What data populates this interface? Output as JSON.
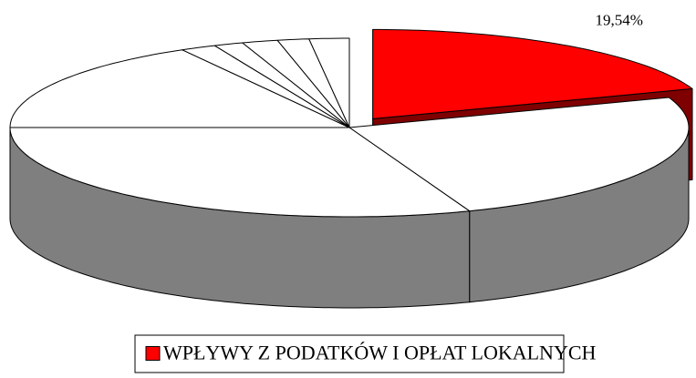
{
  "chart_data": {
    "type": "pie3d",
    "categories": [
      "WPŁYWY Z PODATKÓW I OPŁAT LOKALNYCH",
      null,
      null,
      null,
      null,
      null,
      null,
      null,
      null
    ],
    "values": [
      19.54,
      24.7,
      30.76,
      16.8,
      1.7,
      1.4,
      1.7,
      1.5,
      1.9
    ],
    "value_labels": [
      "19,54%",
      null,
      null,
      null,
      null,
      null,
      null,
      null,
      null
    ],
    "colors": [
      "#ff0000",
      "#ffffff",
      "#ffffff",
      "#ffffff",
      "#ffffff",
      "#ffffff",
      "#ffffff",
      "#ffffff",
      "#ffffff"
    ],
    "exploded": [
      true,
      false,
      false,
      false,
      false,
      false,
      false,
      false,
      false
    ],
    "legend": "bottom"
  }
}
